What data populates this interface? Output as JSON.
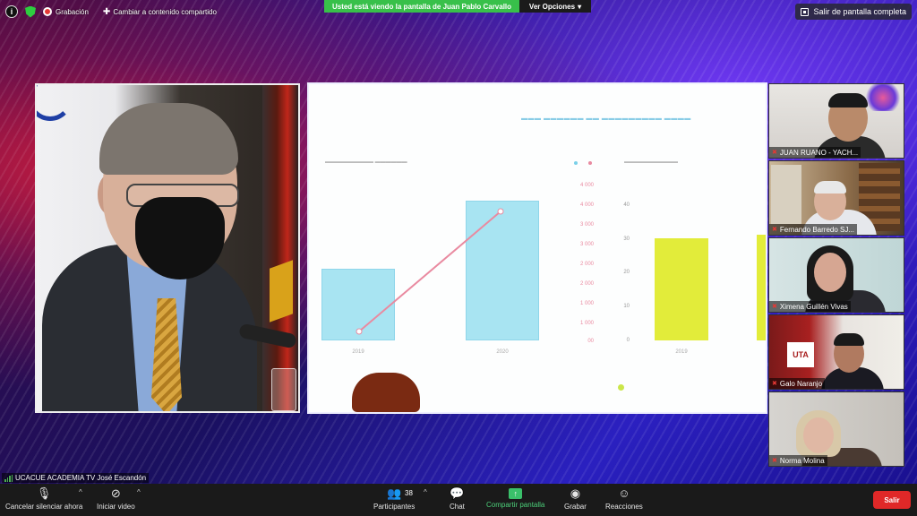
{
  "top_bar": {
    "recording_label": "Grabación",
    "change_shared_label": "Cambiar a contenido compartido",
    "viewing_banner": "Usted está viendo la pantalla de Juan Pablo Carvallo",
    "view_options_label": "Ver Opciones",
    "exit_fullscreen_label": "Salir de pantalla completa"
  },
  "slide": {
    "x_labels": [
      "2019",
      "2020",
      "2019"
    ],
    "y_ticks_left": [
      "4 000",
      "4 000",
      "3 000",
      "3 000",
      "2 000",
      "2 000",
      "1 000",
      "1 000",
      "00"
    ],
    "y_ticks_right": [
      "40",
      "30",
      "20",
      "10",
      "0"
    ],
    "colors": {
      "bar_cyan": "#a8e4f2",
      "bar_yellow": "#e2ec3a",
      "trend_line": "#e98aa0"
    }
  },
  "participants": [
    {
      "name": "JUAN RUANO - YACH..."
    },
    {
      "name": "Fernando Barredo SJ..."
    },
    {
      "name": "Ximena Guillén Vivas"
    },
    {
      "name": "Galo Naranjo"
    },
    {
      "name": "Norma Molina"
    }
  ],
  "active_speaker_label": "UCACUE ACADEMIA TV José Escandón",
  "toolbar": {
    "mute_label": "Cancelar silenciar ahora",
    "video_label": "Iniciar video",
    "participants_label": "Participantes",
    "participants_count": "38",
    "chat_label": "Chat",
    "share_label": "Compartir pantalla",
    "record_label": "Grabar",
    "reactions_label": "Reacciones",
    "leave_label": "Salir"
  }
}
